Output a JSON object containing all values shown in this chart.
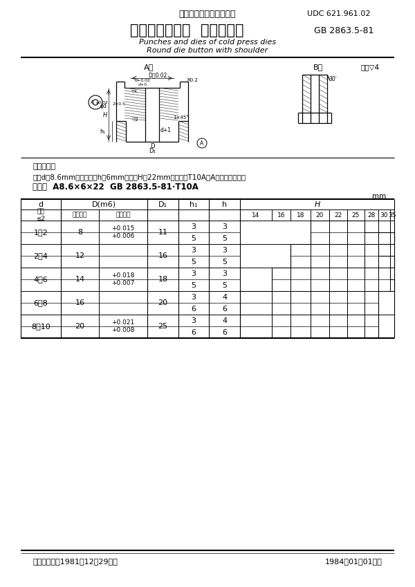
{
  "title_cn": "中华人民共和国国家标准",
  "udc": "UDC 621.961.02",
  "main_title": "冷冲模凸、凹模  带肩圆凹模",
  "gb": "GB 2863.5-81",
  "subtitle_en1": "Punches and dies of cold press dies",
  "subtitle_en2": "Round die button with shoulder",
  "note_label": "标记示例：",
  "note_line1": "孔径d＝8.6mm、刃壁高度h＝6mm、高度H＝22mm、材料为T10A的A型带合圆凹模：",
  "note_line2": "圆凹模  A8.6×6×22  GB 2863.5-81·T10A",
  "unit": "mm",
  "footer_left": "国家标准总局1981－12－29发布",
  "footer_right": "1984－01－01实施",
  "H_cols": [
    "14",
    "16",
    "18",
    "20",
    "22",
    "25",
    "28",
    "30",
    "35"
  ],
  "rows": [
    {
      "d": "1－2",
      "D_basic": "8",
      "D_tol": "+0.015\n+0.006",
      "D1": "11",
      "sub": [
        {
          "h1": "3",
          "h": "3"
        },
        {
          "h1": "5",
          "h": "5"
        }
      ]
    },
    {
      "d": "2－4",
      "D_basic": "12",
      "D_tol": "",
      "D1": "16",
      "sub": [
        {
          "h1": "3",
          "h": "3"
        },
        {
          "h1": "5",
          "h": "5"
        }
      ]
    },
    {
      "d": "4－6",
      "D_basic": "14",
      "D_tol": "+0.018\n+0.007",
      "D1": "18",
      "sub": [
        {
          "h1": "3",
          "h": "3"
        },
        {
          "h1": "5",
          "h": "5"
        }
      ]
    },
    {
      "d": "6－8",
      "D_basic": "16",
      "D_tol": "",
      "D1": "20",
      "sub": [
        {
          "h1": "3",
          "h": "4"
        },
        {
          "h1": "6",
          "h": "6"
        }
      ]
    },
    {
      "d": "8－10",
      "D_basic": "20",
      "D_tol": "+0.021\n+0.008",
      "D1": "25",
      "sub": [
        {
          "h1": "3",
          "h": "4"
        },
        {
          "h1": "6",
          "h": "6"
        }
      ]
    }
  ],
  "h_active": [
    [
      [
        3,
        4,
        5
      ],
      [
        3,
        4,
        5,
        6,
        7,
        8
      ]
    ],
    [
      [
        2,
        3,
        4,
        5,
        6
      ],
      [
        2,
        3,
        4,
        5,
        6,
        7,
        8
      ]
    ],
    [
      [
        1,
        2,
        3,
        4,
        5,
        6,
        7
      ],
      [
        1,
        2,
        3,
        4,
        5,
        6,
        7,
        8
      ]
    ],
    [
      [
        0,
        1,
        2,
        3,
        4,
        5,
        6
      ],
      [
        0,
        1,
        2,
        3,
        4,
        5,
        6
      ]
    ],
    [
      [
        0,
        1,
        2,
        3,
        4,
        5,
        6
      ],
      [
        0,
        1,
        2,
        3,
        4,
        5,
        6
      ]
    ]
  ],
  "bg_color": "#ffffff",
  "text_color": "#000000"
}
